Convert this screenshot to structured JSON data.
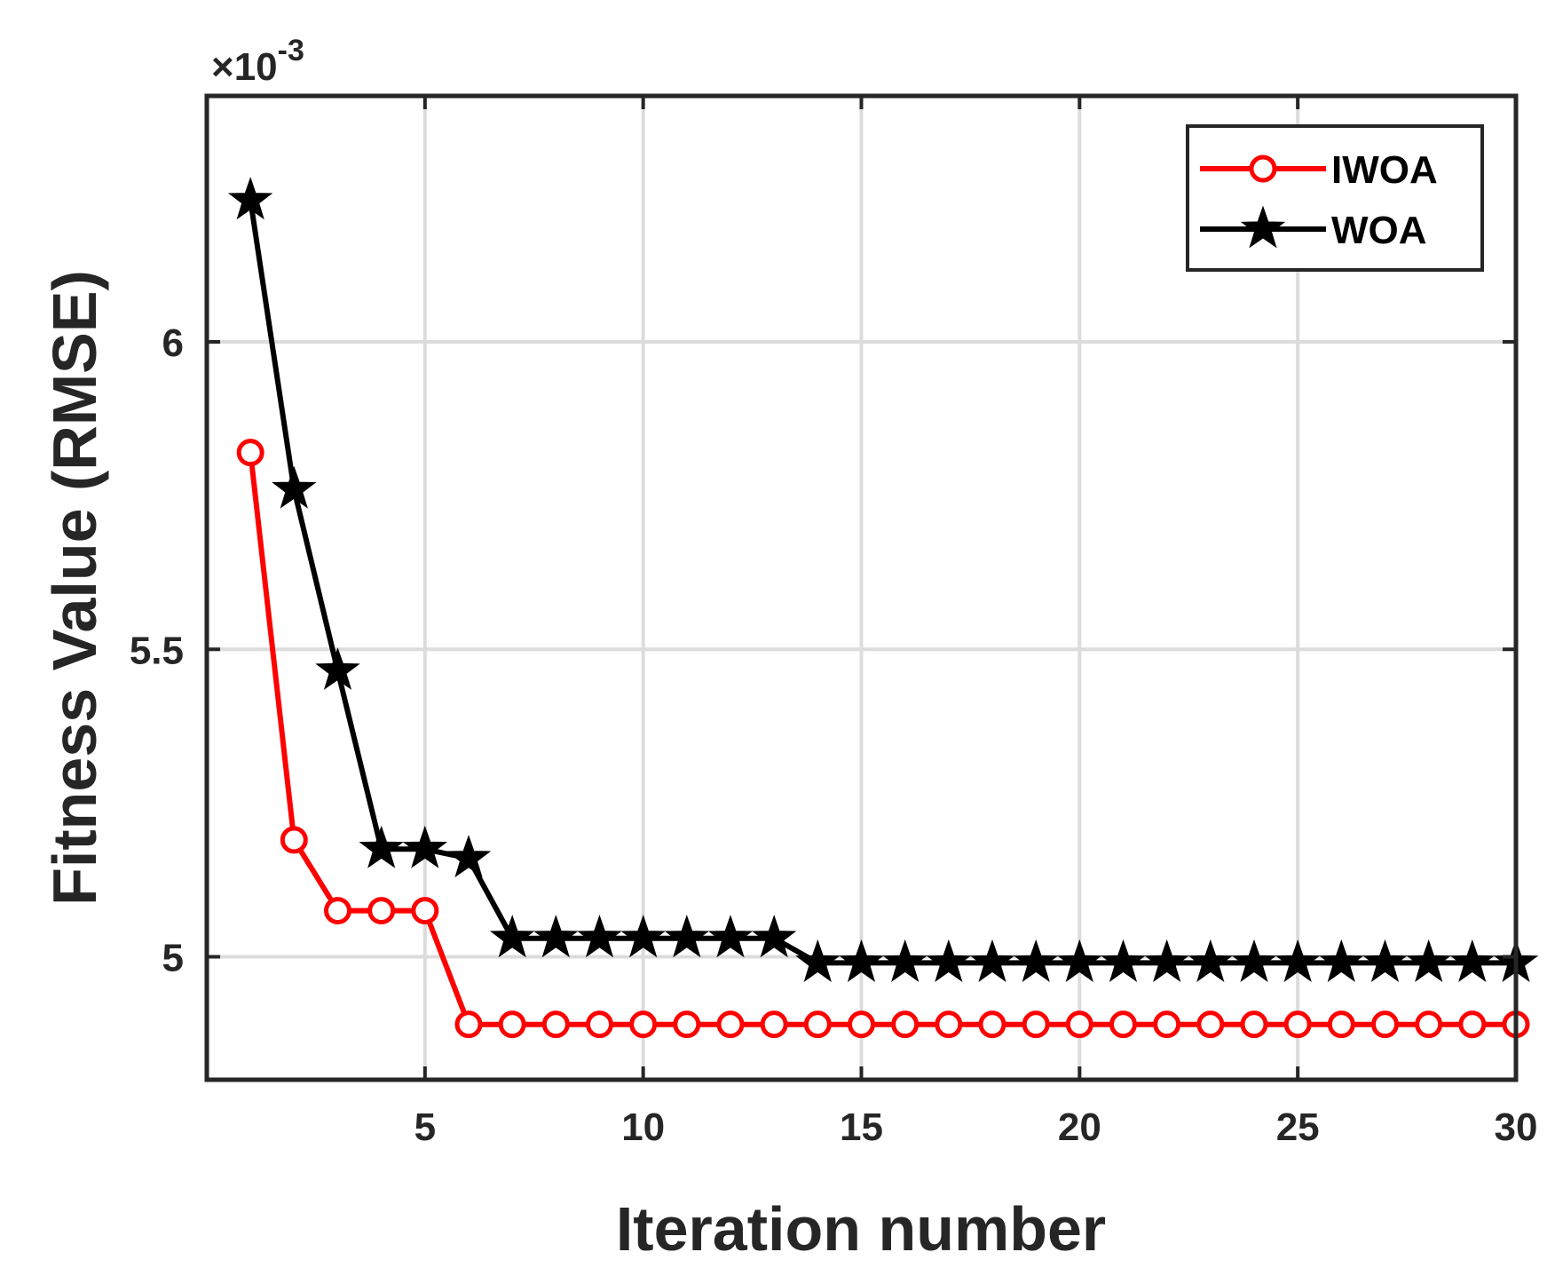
{
  "chart_data": {
    "type": "line",
    "xlabel": "Iteration number",
    "ylabel": "Fitness Value (RMSE)",
    "y_multiplier": "×10",
    "y_exponent": "-3",
    "xlim": [
      0,
      30
    ],
    "ylim": [
      4.8,
      6.4
    ],
    "x_ticks": [
      5,
      10,
      15,
      20,
      25,
      30
    ],
    "y_ticks": [
      5,
      5.5,
      6
    ],
    "y_tick_labels": [
      "5",
      "5.5",
      "6"
    ],
    "grid": true,
    "legend_position": "top-right",
    "x": [
      1,
      2,
      3,
      4,
      5,
      6,
      7,
      8,
      9,
      10,
      11,
      12,
      13,
      14,
      15,
      16,
      17,
      18,
      19,
      20,
      21,
      22,
      23,
      24,
      25,
      26,
      27,
      28,
      29,
      30
    ],
    "series": [
      {
        "name": "IWOA",
        "color": "#ff0000",
        "marker": "circle",
        "values": [
          5.82,
          5.19,
          5.075,
          5.075,
          5.075,
          4.89,
          4.89,
          4.89,
          4.89,
          4.89,
          4.89,
          4.89,
          4.89,
          4.89,
          4.89,
          4.89,
          4.89,
          4.89,
          4.89,
          4.89,
          4.89,
          4.89,
          4.89,
          4.89,
          4.89,
          4.89,
          4.89,
          4.89,
          4.89,
          4.89
        ]
      },
      {
        "name": "WOA",
        "color": "#000000",
        "marker": "star",
        "values": [
          6.23,
          5.76,
          5.465,
          5.175,
          5.175,
          5.16,
          5.03,
          5.03,
          5.03,
          5.03,
          5.03,
          5.03,
          5.03,
          4.99,
          4.99,
          4.99,
          4.99,
          4.99,
          4.99,
          4.99,
          4.99,
          4.99,
          4.99,
          4.99,
          4.99,
          4.99,
          4.99,
          4.99,
          4.99,
          4.99
        ]
      }
    ]
  }
}
